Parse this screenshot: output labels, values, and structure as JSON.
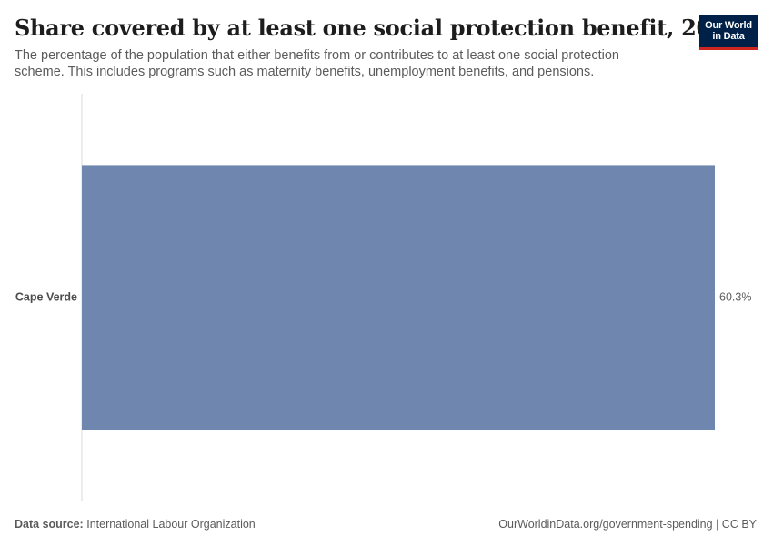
{
  "header": {
    "title": "Share covered by at least one social protection benefit, 2023",
    "subtitle": "The percentage of the population that either benefits from or contributes to at least one social protection scheme. This includes programs such as maternity benefits, unemployment benefits, and pensions."
  },
  "logo": {
    "line1": "Our World",
    "line2": "in Data",
    "bg_color": "#002147",
    "accent_color": "#ce261e"
  },
  "chart_data": {
    "type": "bar",
    "orientation": "horizontal",
    "categories": [
      "Cape Verde"
    ],
    "values": [
      60.3
    ],
    "value_labels": [
      "60.3%"
    ],
    "unit": "%",
    "title": "Share covered by at least one social protection benefit, 2023",
    "xlabel": "",
    "ylabel": "",
    "xlim": [
      0,
      60.3
    ],
    "grid": false,
    "bar_color": "#6f87af"
  },
  "footer": {
    "source_label": "Data source:",
    "source_value": "International Labour Organization",
    "link_text": "OurWorldinData.org/government-spending",
    "license_text": "| CC BY"
  }
}
